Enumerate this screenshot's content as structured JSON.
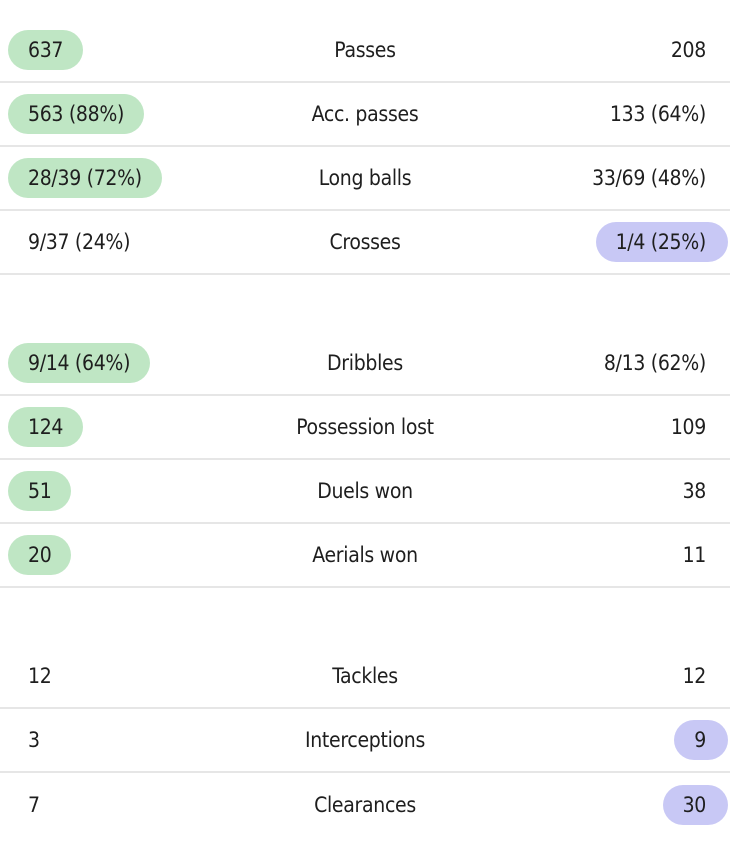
{
  "colors": {
    "home_highlight": "#bfe6c4",
    "away_highlight": "#c8c8f5",
    "divider": "#e6e6e6",
    "text": "#1e1e1e"
  },
  "groups": [
    {
      "rows": [
        {
          "label": "Passes",
          "home": "637",
          "away": "208",
          "highlight": "home"
        },
        {
          "label": "Acc. passes",
          "home": "563 (88%)",
          "away": "133 (64%)",
          "highlight": "home"
        },
        {
          "label": "Long balls",
          "home": "28/39 (72%)",
          "away": "33/69 (48%)",
          "highlight": "home"
        },
        {
          "label": "Crosses",
          "home": "9/37 (24%)",
          "away": "1/4 (25%)",
          "highlight": "away"
        }
      ]
    },
    {
      "rows": [
        {
          "label": "Dribbles",
          "home": "9/14 (64%)",
          "away": "8/13 (62%)",
          "highlight": "home"
        },
        {
          "label": "Possession lost",
          "home": "124",
          "away": "109",
          "highlight": "home"
        },
        {
          "label": "Duels won",
          "home": "51",
          "away": "38",
          "highlight": "home"
        },
        {
          "label": "Aerials won",
          "home": "20",
          "away": "11",
          "highlight": "home"
        }
      ]
    },
    {
      "rows": [
        {
          "label": "Tackles",
          "home": "12",
          "away": "12",
          "highlight": "none"
        },
        {
          "label": "Interceptions",
          "home": "3",
          "away": "9",
          "highlight": "away"
        },
        {
          "label": "Clearances",
          "home": "7",
          "away": "30",
          "highlight": "away"
        }
      ]
    }
  ]
}
